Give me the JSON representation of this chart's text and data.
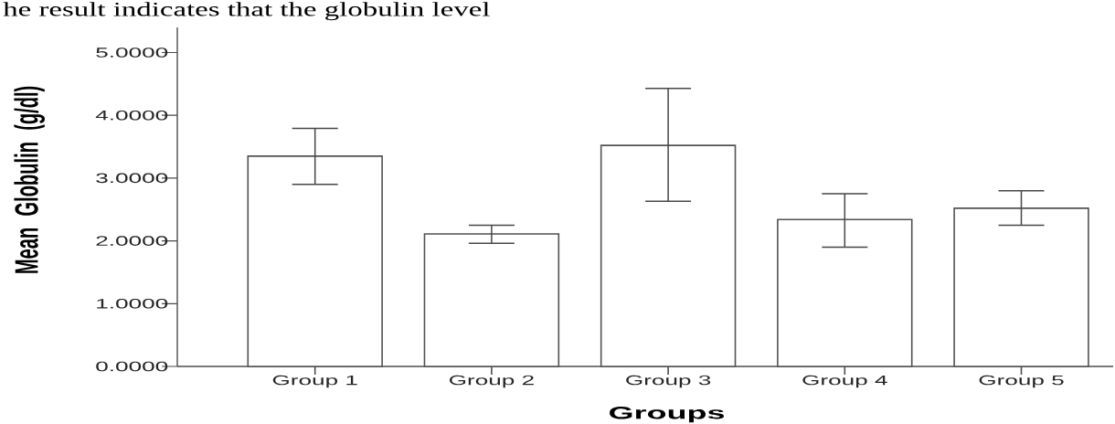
{
  "chart_data": {
    "type": "bar",
    "xlabel": "Groups",
    "ylabel": "Mean Globulin (g/dl)",
    "annotations": [
      "he result indicates that the globulin level"
    ],
    "categories": [
      "Group 1",
      "Group 2",
      "Group 3",
      "Group 4",
      "Group 5"
    ],
    "values": [
      3.35,
      2.11,
      3.52,
      2.34,
      2.52
    ],
    "errors": [
      [
        2.9,
        3.79
      ],
      [
        1.96,
        2.25
      ],
      [
        2.63,
        4.43
      ],
      [
        1.9,
        2.75
      ],
      [
        2.25,
        2.8
      ]
    ],
    "color": "#ffffff",
    "ylim": [
      0,
      5.4
    ],
    "yticks": [
      {
        "value": 0,
        "label": "0.0000"
      },
      {
        "value": 1,
        "label": "1.0000"
      },
      {
        "value": 2,
        "label": "2.0000"
      },
      {
        "value": 3,
        "label": "3.0000"
      },
      {
        "value": 4,
        "label": "4.0000"
      },
      {
        "value": 5,
        "label": "5.0000"
      }
    ]
  }
}
